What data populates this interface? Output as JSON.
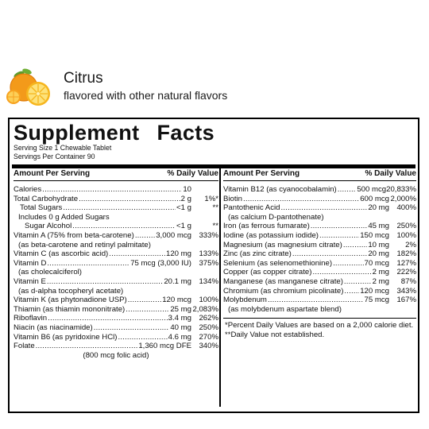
{
  "flavor": {
    "name": "Citrus",
    "subtitle": "flavored with other natural flavors",
    "icon": "citrus-fruit-icon"
  },
  "facts": {
    "title_left": "Supplement",
    "title_right": "Facts",
    "serving_size": "Serving Size 1 Chewable Tablet",
    "servings_per_container": "Servings Per Container 90",
    "header_amount": "Amount Per Serving",
    "header_dv": "% Daily Value",
    "left_rows": [
      {
        "name": "Calories",
        "amt": "10",
        "dv": ""
      },
      {
        "name": "Total Carbohydrate",
        "amt": "2 g",
        "dv": "1%*"
      },
      {
        "name": "Total Sugars",
        "amt": "<1 g",
        "dv": "**",
        "indent": 1
      },
      {
        "note": "Includes 0 g Added Sugars",
        "indent": 2
      },
      {
        "name": "Sugar Alcohol",
        "amt": "<1 g",
        "dv": "**",
        "indent": 2
      },
      {
        "name": "Vitamin A (75% from beta-carotene)",
        "amt": "3,000 mcg",
        "dv": "333%"
      },
      {
        "note": "(as beta-carotene and retinyl palmitate)"
      },
      {
        "name": "Vitamin C (as ascorbic acid)",
        "amt": "120 mg",
        "dv": "133%"
      },
      {
        "name": "Vitamin D",
        "amt": "75 mcg (3,000 IU)",
        "dv": "375%"
      },
      {
        "note": "(as cholecalciferol)"
      },
      {
        "name": "Vitamin E",
        "amt": "20.1 mg",
        "dv": "134%"
      },
      {
        "note": "(as d-alpha tocopheryl acetate)"
      },
      {
        "name": "Vitamin K (as phytonadione USP)",
        "amt": "120 mcg",
        "dv": "100%"
      },
      {
        "name": "Thiamin (as thiamin mononitrate)",
        "amt": "25 mg",
        "dv": "2,083%"
      },
      {
        "name": "Riboflavin",
        "amt": "3.4 mg",
        "dv": "262%"
      },
      {
        "name": "Niacin (as niacinamide)",
        "amt": "40 mg",
        "dv": "250%"
      },
      {
        "name": "Vitamin B6 (as pyridoxine HCl)",
        "amt": "4.6 mg",
        "dv": "270%"
      },
      {
        "name": "Folate",
        "amt": "1,360 mcg DFE",
        "dv": "340%"
      },
      {
        "note": "(800 mcg folic acid)",
        "center": true
      }
    ],
    "right_rows": [
      {
        "name": "Vitamin B12 (as cyanocobalamin)",
        "amt": "500 mcg",
        "dv": "20,833%"
      },
      {
        "name": "Biotin",
        "amt": "600 mcg",
        "dv": "2,000%"
      },
      {
        "name": "Pantothenic Acid",
        "amt": "20 mg",
        "dv": "400%"
      },
      {
        "note": "(as calcium D-pantothenate)"
      },
      {
        "name": "Iron (as ferrous fumarate)",
        "amt": "45 mg",
        "dv": "250%"
      },
      {
        "name": "Iodine (as potassium iodide)",
        "amt": "150 mcg",
        "dv": "100%"
      },
      {
        "name": "Magnesium (as magnesium citrate)",
        "amt": "10 mg",
        "dv": "2%"
      },
      {
        "name": "Zinc (as zinc citrate)",
        "amt": "20 mg",
        "dv": "182%"
      },
      {
        "name": "Selenium (as selenomethionine)",
        "amt": "70 mcg",
        "dv": "127%"
      },
      {
        "name": "Copper (as copper citrate)",
        "amt": "2 mg",
        "dv": "222%"
      },
      {
        "name": "Manganese (as manganese citrate)",
        "amt": "2 mg",
        "dv": "87%"
      },
      {
        "name": "Chromium (as chromium picolinate)",
        "amt": "120 mcg",
        "dv": "343%"
      },
      {
        "name": "Molybdenum",
        "amt": "75 mcg",
        "dv": "167%"
      },
      {
        "note": "(as molybdenum aspartate blend)"
      }
    ],
    "footnotes": [
      "*Percent Daily Values are based on a 2,000 calorie diet.",
      "**Daily Value not established."
    ]
  }
}
